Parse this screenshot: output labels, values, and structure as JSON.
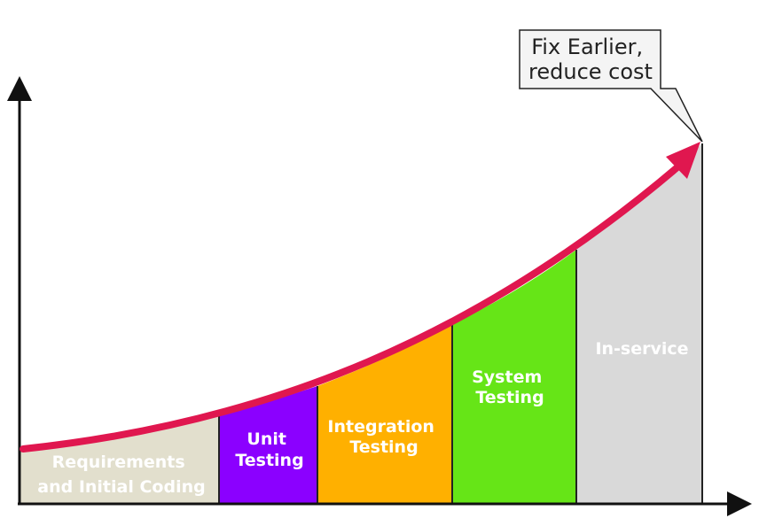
{
  "callout": {
    "line1": "Fix Earlier,",
    "line2": "reduce cost"
  },
  "phases": [
    {
      "line1": "Requirements",
      "line2": "and Initial Coding",
      "color": "#e2dfcd"
    },
    {
      "line1": "Unit",
      "line2": "Testing",
      "color": "#8b00ff"
    },
    {
      "line1": "Integration",
      "line2": "Testing",
      "color": "#ffb000"
    },
    {
      "line1": "System",
      "line2": "Testing",
      "color": "#66e517"
    },
    {
      "line1": "In-service",
      "line2": "",
      "color": "#d9d9d9"
    }
  ],
  "colors": {
    "curve": "#e0174f",
    "axis": "#111111",
    "divider": "#222222"
  }
}
